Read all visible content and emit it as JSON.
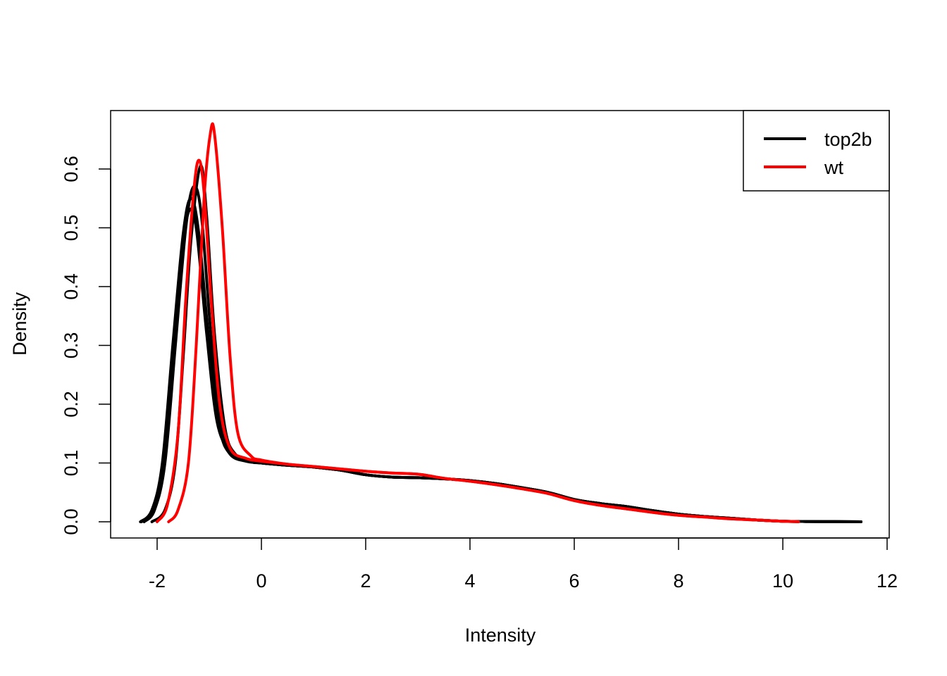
{
  "chart_data": {
    "type": "line",
    "title": "",
    "xlabel": "Intensity",
    "ylabel": "Density",
    "xlim": [
      -2.4,
      11.6
    ],
    "ylim": [
      -0.025,
      0.7
    ],
    "x_ticks": [
      -2,
      0,
      2,
      4,
      6,
      8,
      10,
      12
    ],
    "x_tick_labels": [
      "-2",
      "0",
      "2",
      "4",
      "6",
      "8",
      "10",
      "12"
    ],
    "y_ticks": [
      0.0,
      0.1,
      0.2,
      0.3,
      0.4,
      0.5,
      0.6
    ],
    "y_tick_labels": [
      "0.0",
      "0.1",
      "0.2",
      "0.3",
      "0.4",
      "0.5",
      "0.6"
    ],
    "grid": false,
    "legend": {
      "position": "top-right",
      "entries": [
        {
          "label": "top2b",
          "color": "#000000"
        },
        {
          "label": "wt",
          "color": "#ff0000"
        }
      ]
    },
    "series": [
      {
        "group": "top2b",
        "color": "#000000",
        "points": [
          [
            -2.32,
            0
          ],
          [
            -2.1,
            0.02
          ],
          [
            -1.9,
            0.1
          ],
          [
            -1.7,
            0.3
          ],
          [
            -1.5,
            0.49
          ],
          [
            -1.35,
            0.55
          ],
          [
            -1.2,
            0.49
          ],
          [
            -1.0,
            0.3
          ],
          [
            -0.8,
            0.16
          ],
          [
            -0.6,
            0.115
          ],
          [
            -0.3,
            0.103
          ],
          [
            0,
            0.1
          ],
          [
            0.5,
            0.096
          ],
          [
            1.0,
            0.093
          ],
          [
            1.5,
            0.088
          ],
          [
            2.0,
            0.08
          ],
          [
            2.5,
            0.076
          ],
          [
            3.0,
            0.075
          ],
          [
            3.5,
            0.073
          ],
          [
            4.0,
            0.07
          ],
          [
            4.5,
            0.065
          ],
          [
            5.0,
            0.058
          ],
          [
            5.5,
            0.05
          ],
          [
            6.0,
            0.038
          ],
          [
            6.5,
            0.031
          ],
          [
            7.0,
            0.026
          ],
          [
            7.5,
            0.019
          ],
          [
            8.0,
            0.013
          ],
          [
            8.5,
            0.009
          ],
          [
            9.0,
            0.006
          ],
          [
            9.5,
            0.003
          ],
          [
            10.0,
            0.001
          ],
          [
            10.5,
            0.0005
          ],
          [
            11.0,
            0.0002
          ],
          [
            11.5,
            0
          ]
        ]
      },
      {
        "group": "top2b",
        "color": "#000000",
        "points": [
          [
            -2.25,
            0
          ],
          [
            -2.05,
            0.02
          ],
          [
            -1.85,
            0.1
          ],
          [
            -1.65,
            0.3
          ],
          [
            -1.45,
            0.5
          ],
          [
            -1.3,
            0.57
          ],
          [
            -1.15,
            0.52
          ],
          [
            -0.95,
            0.3
          ],
          [
            -0.75,
            0.16
          ],
          [
            -0.55,
            0.115
          ],
          [
            -0.25,
            0.103
          ],
          [
            0,
            0.1
          ],
          [
            0.5,
            0.096
          ],
          [
            1.0,
            0.093
          ],
          [
            1.5,
            0.088
          ],
          [
            2.0,
            0.08
          ],
          [
            2.5,
            0.076
          ],
          [
            3.0,
            0.075
          ],
          [
            3.5,
            0.073
          ],
          [
            4.0,
            0.07
          ],
          [
            4.5,
            0.065
          ],
          [
            5.0,
            0.058
          ],
          [
            5.5,
            0.05
          ],
          [
            6.0,
            0.038
          ],
          [
            6.5,
            0.031
          ],
          [
            7.0,
            0.026
          ],
          [
            7.5,
            0.019
          ],
          [
            8.0,
            0.013
          ],
          [
            8.5,
            0.009
          ],
          [
            9.0,
            0.006
          ],
          [
            9.5,
            0.003
          ],
          [
            10.0,
            0.001
          ],
          [
            10.5,
            0.0005
          ],
          [
            11.0,
            0.0002
          ],
          [
            11.5,
            0
          ]
        ]
      },
      {
        "group": "top2b",
        "color": "#000000",
        "points": [
          [
            -2.3,
            0
          ],
          [
            -2.1,
            0.02
          ],
          [
            -1.9,
            0.09
          ],
          [
            -1.7,
            0.28
          ],
          [
            -1.5,
            0.47
          ],
          [
            -1.38,
            0.53
          ],
          [
            -1.25,
            0.5
          ],
          [
            -1.05,
            0.32
          ],
          [
            -0.85,
            0.17
          ],
          [
            -0.6,
            0.12
          ],
          [
            -0.3,
            0.104
          ],
          [
            0,
            0.1
          ],
          [
            0.5,
            0.096
          ],
          [
            1.0,
            0.093
          ],
          [
            1.5,
            0.088
          ],
          [
            2.0,
            0.08
          ],
          [
            2.5,
            0.076
          ],
          [
            3.0,
            0.075
          ],
          [
            3.5,
            0.073
          ],
          [
            4.0,
            0.07
          ],
          [
            4.5,
            0.065
          ],
          [
            5.0,
            0.058
          ],
          [
            5.5,
            0.05
          ],
          [
            6.0,
            0.038
          ],
          [
            6.5,
            0.031
          ],
          [
            7.0,
            0.026
          ],
          [
            7.5,
            0.019
          ],
          [
            8.0,
            0.013
          ],
          [
            8.5,
            0.009
          ],
          [
            9.0,
            0.006
          ],
          [
            9.5,
            0.003
          ],
          [
            10.0,
            0.001
          ],
          [
            10.5,
            0.0005
          ],
          [
            11.0,
            0.0002
          ],
          [
            11.5,
            0
          ]
        ]
      },
      {
        "group": "top2b",
        "color": "#000000",
        "points": [
          [
            -2.1,
            0
          ],
          [
            -1.85,
            0.02
          ],
          [
            -1.65,
            0.1
          ],
          [
            -1.5,
            0.28
          ],
          [
            -1.35,
            0.48
          ],
          [
            -1.17,
            0.605
          ],
          [
            -1.05,
            0.52
          ],
          [
            -0.9,
            0.32
          ],
          [
            -0.7,
            0.16
          ],
          [
            -0.5,
            0.115
          ],
          [
            -0.2,
            0.102
          ],
          [
            0,
            0.1
          ],
          [
            0.5,
            0.096
          ],
          [
            1.0,
            0.093
          ],
          [
            1.5,
            0.088
          ],
          [
            2.0,
            0.08
          ],
          [
            2.5,
            0.076
          ],
          [
            3.0,
            0.075
          ],
          [
            3.5,
            0.073
          ],
          [
            4.0,
            0.07
          ],
          [
            4.5,
            0.065
          ],
          [
            5.0,
            0.058
          ],
          [
            5.5,
            0.05
          ],
          [
            6.0,
            0.038
          ],
          [
            6.5,
            0.031
          ],
          [
            7.0,
            0.026
          ],
          [
            7.5,
            0.019
          ],
          [
            8.0,
            0.013
          ],
          [
            8.5,
            0.009
          ],
          [
            9.0,
            0.006
          ],
          [
            9.5,
            0.003
          ],
          [
            10.0,
            0.001
          ],
          [
            10.5,
            0.0005
          ],
          [
            11.0,
            0.0002
          ],
          [
            11.5,
            0
          ]
        ]
      },
      {
        "group": "wt",
        "color": "#ff0000",
        "points": [
          [
            -2.0,
            0
          ],
          [
            -1.8,
            0.03
          ],
          [
            -1.6,
            0.15
          ],
          [
            -1.45,
            0.38
          ],
          [
            -1.3,
            0.56
          ],
          [
            -1.2,
            0.615
          ],
          [
            -1.1,
            0.56
          ],
          [
            -0.95,
            0.36
          ],
          [
            -0.8,
            0.2
          ],
          [
            -0.6,
            0.125
          ],
          [
            -0.3,
            0.108
          ],
          [
            0,
            0.103
          ],
          [
            0.5,
            0.098
          ],
          [
            1.0,
            0.094
          ],
          [
            1.5,
            0.09
          ],
          [
            2.0,
            0.086
          ],
          [
            2.5,
            0.083
          ],
          [
            3.0,
            0.081
          ],
          [
            3.5,
            0.074
          ],
          [
            4.0,
            0.069
          ],
          [
            4.5,
            0.063
          ],
          [
            5.0,
            0.056
          ],
          [
            5.5,
            0.048
          ],
          [
            6.0,
            0.036
          ],
          [
            6.5,
            0.028
          ],
          [
            7.0,
            0.022
          ],
          [
            7.5,
            0.016
          ],
          [
            8.0,
            0.011
          ],
          [
            8.5,
            0.008
          ],
          [
            9.0,
            0.005
          ],
          [
            9.5,
            0.003
          ],
          [
            10.0,
            0.001
          ],
          [
            10.3,
            0
          ]
        ]
      },
      {
        "group": "wt",
        "color": "#ff0000",
        "points": [
          [
            -1.78,
            0
          ],
          [
            -1.6,
            0.02
          ],
          [
            -1.4,
            0.1
          ],
          [
            -1.25,
            0.3
          ],
          [
            -1.1,
            0.55
          ],
          [
            -0.98,
            0.66
          ],
          [
            -0.9,
            0.66
          ],
          [
            -0.75,
            0.5
          ],
          [
            -0.6,
            0.28
          ],
          [
            -0.45,
            0.15
          ],
          [
            -0.2,
            0.112
          ],
          [
            0,
            0.105
          ],
          [
            0.5,
            0.098
          ],
          [
            1.0,
            0.094
          ],
          [
            1.5,
            0.09
          ],
          [
            2.0,
            0.086
          ],
          [
            2.5,
            0.083
          ],
          [
            3.0,
            0.081
          ],
          [
            3.5,
            0.074
          ],
          [
            4.0,
            0.069
          ],
          [
            4.5,
            0.063
          ],
          [
            5.0,
            0.056
          ],
          [
            5.5,
            0.048
          ],
          [
            6.0,
            0.036
          ],
          [
            6.5,
            0.028
          ],
          [
            7.0,
            0.022
          ],
          [
            7.5,
            0.016
          ],
          [
            8.0,
            0.011
          ],
          [
            8.5,
            0.008
          ],
          [
            9.0,
            0.005
          ],
          [
            9.5,
            0.003
          ],
          [
            10.0,
            0.001
          ],
          [
            10.3,
            0
          ]
        ]
      }
    ]
  }
}
